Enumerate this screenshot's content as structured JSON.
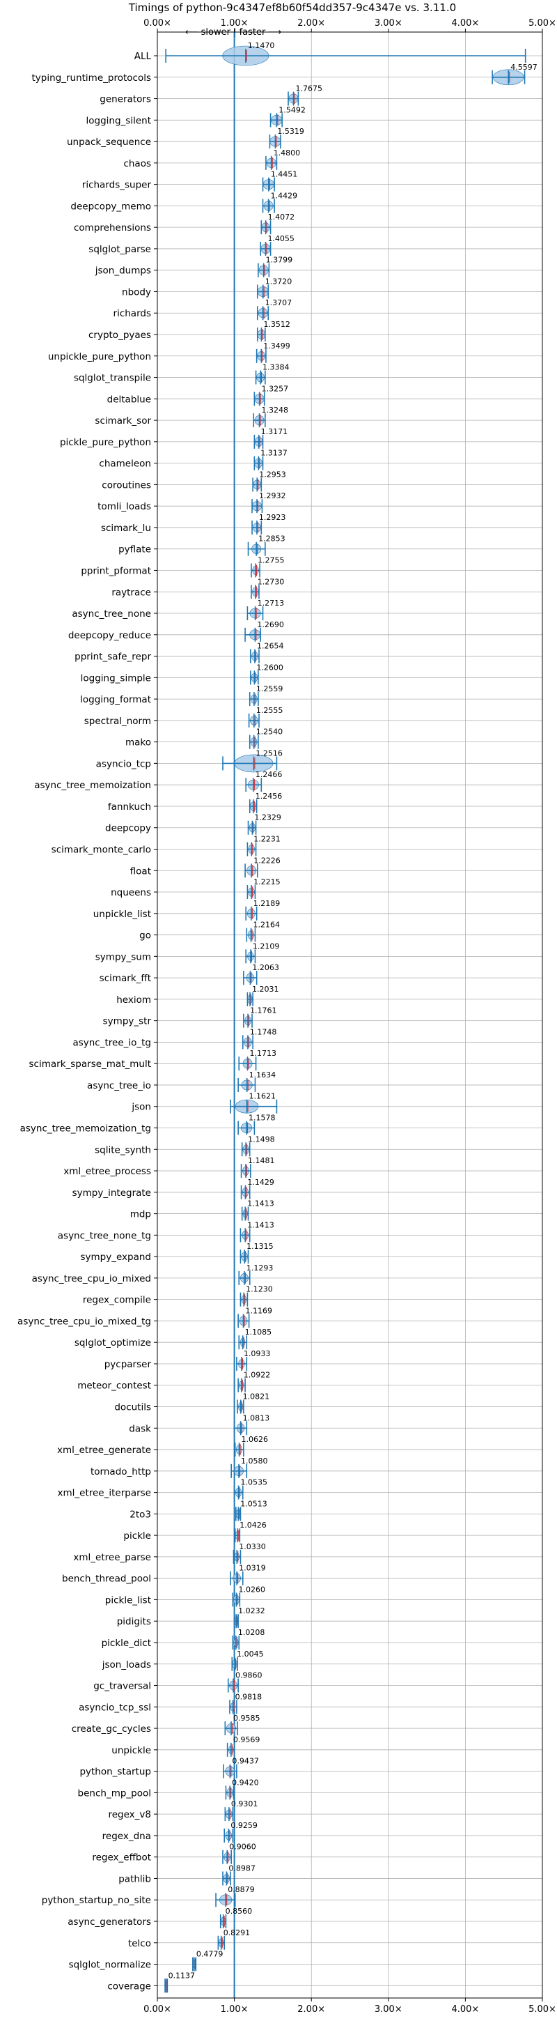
{
  "chart_data": {
    "type": "violin",
    "title": "Timings of python-9c4347ef8b60f54dd357-9c4347e vs. 3.11.0",
    "direction_annotation": "⟵ slower | faster ⟶",
    "xlim": [
      0,
      5
    ],
    "x_ticks": [
      0,
      1,
      2,
      3,
      4,
      5
    ],
    "x_tick_labels": [
      "0.00×",
      "1.00×",
      "2.00×",
      "3.00×",
      "4.00×",
      "5.00×"
    ],
    "reference_line": 1.0,
    "grid": true,
    "benchmarks": [
      {
        "name": "ALL",
        "value": 1.147,
        "label": "1.1470",
        "lo": 0.11,
        "hi": 4.78,
        "spread": 0.3
      },
      {
        "name": "typing_runtime_protocols",
        "value": 4.5597,
        "label": "4.5597",
        "lo": 4.35,
        "hi": 4.77,
        "spread": 0.2
      },
      {
        "name": "generators",
        "value": 1.7675,
        "label": "1.7675",
        "lo": 1.7,
        "hi": 1.83,
        "spread": 0.06
      },
      {
        "name": "logging_silent",
        "value": 1.5492,
        "label": "1.5492",
        "lo": 1.47,
        "hi": 1.62,
        "spread": 0.07
      },
      {
        "name": "unpack_sequence",
        "value": 1.5319,
        "label": "1.5319",
        "lo": 1.46,
        "hi": 1.6,
        "spread": 0.07
      },
      {
        "name": "chaos",
        "value": 1.48,
        "label": "1.4800",
        "lo": 1.41,
        "hi": 1.55,
        "spread": 0.06
      },
      {
        "name": "richards_super",
        "value": 1.4451,
        "label": "1.4451",
        "lo": 1.37,
        "hi": 1.52,
        "spread": 0.07
      },
      {
        "name": "deepcopy_memo",
        "value": 1.4429,
        "label": "1.4429",
        "lo": 1.37,
        "hi": 1.52,
        "spread": 0.06
      },
      {
        "name": "comprehensions",
        "value": 1.4072,
        "label": "1.4072",
        "lo": 1.35,
        "hi": 1.47,
        "spread": 0.05
      },
      {
        "name": "sqlglot_parse",
        "value": 1.4055,
        "label": "1.4055",
        "lo": 1.34,
        "hi": 1.47,
        "spread": 0.06
      },
      {
        "name": "json_dumps",
        "value": 1.3799,
        "label": "1.3799",
        "lo": 1.31,
        "hi": 1.45,
        "spread": 0.06
      },
      {
        "name": "nbody",
        "value": 1.372,
        "label": "1.3720",
        "lo": 1.3,
        "hi": 1.44,
        "spread": 0.07
      },
      {
        "name": "richards",
        "value": 1.3707,
        "label": "1.3707",
        "lo": 1.3,
        "hi": 1.44,
        "spread": 0.06
      },
      {
        "name": "crypto_pyaes",
        "value": 1.3512,
        "label": "1.3512",
        "lo": 1.3,
        "hi": 1.4,
        "spread": 0.05
      },
      {
        "name": "unpickle_pure_python",
        "value": 1.3499,
        "label": "1.3499",
        "lo": 1.29,
        "hi": 1.41,
        "spread": 0.05
      },
      {
        "name": "sqlglot_transpile",
        "value": 1.3384,
        "label": "1.3384",
        "lo": 1.28,
        "hi": 1.4,
        "spread": 0.05
      },
      {
        "name": "deltablue",
        "value": 1.3257,
        "label": "1.3257",
        "lo": 1.26,
        "hi": 1.39,
        "spread": 0.06
      },
      {
        "name": "scimark_sor",
        "value": 1.3248,
        "label": "1.3248",
        "lo": 1.25,
        "hi": 1.4,
        "spread": 0.06
      },
      {
        "name": "pickle_pure_python",
        "value": 1.3171,
        "label": "1.3171",
        "lo": 1.26,
        "hi": 1.37,
        "spread": 0.05
      },
      {
        "name": "chameleon",
        "value": 1.3137,
        "label": "1.3137",
        "lo": 1.26,
        "hi": 1.37,
        "spread": 0.05
      },
      {
        "name": "coroutines",
        "value": 1.2953,
        "label": "1.2953",
        "lo": 1.24,
        "hi": 1.35,
        "spread": 0.05
      },
      {
        "name": "tomli_loads",
        "value": 1.2932,
        "label": "1.2932",
        "lo": 1.23,
        "hi": 1.36,
        "spread": 0.06
      },
      {
        "name": "scimark_lu",
        "value": 1.2923,
        "label": "1.2923",
        "lo": 1.23,
        "hi": 1.35,
        "spread": 0.05
      },
      {
        "name": "pyflate",
        "value": 1.2853,
        "label": "1.2853",
        "lo": 1.18,
        "hi": 1.4,
        "spread": 0.06
      },
      {
        "name": "pprint_pformat",
        "value": 1.2755,
        "label": "1.2755",
        "lo": 1.22,
        "hi": 1.33,
        "spread": 0.04
      },
      {
        "name": "raytrace",
        "value": 1.273,
        "label": "1.2730",
        "lo": 1.22,
        "hi": 1.32,
        "spread": 0.04
      },
      {
        "name": "async_tree_none",
        "value": 1.2713,
        "label": "1.2713",
        "lo": 1.17,
        "hi": 1.37,
        "spread": 0.07
      },
      {
        "name": "deepcopy_reduce",
        "value": 1.269,
        "label": "1.2690",
        "lo": 1.14,
        "hi": 1.34,
        "spread": 0.07
      },
      {
        "name": "pprint_safe_repr",
        "value": 1.2654,
        "label": "1.2654",
        "lo": 1.21,
        "hi": 1.32,
        "spread": 0.04
      },
      {
        "name": "logging_simple",
        "value": 1.26,
        "label": "1.2600",
        "lo": 1.21,
        "hi": 1.31,
        "spread": 0.04
      },
      {
        "name": "logging_format",
        "value": 1.2559,
        "label": "1.2559",
        "lo": 1.2,
        "hi": 1.31,
        "spread": 0.04
      },
      {
        "name": "spectral_norm",
        "value": 1.2555,
        "label": "1.2555",
        "lo": 1.19,
        "hi": 1.32,
        "spread": 0.05
      },
      {
        "name": "mako",
        "value": 1.254,
        "label": "1.2540",
        "lo": 1.2,
        "hi": 1.31,
        "spread": 0.04
      },
      {
        "name": "asyncio_tcp",
        "value": 1.2516,
        "label": "1.2516",
        "lo": 0.85,
        "hi": 1.55,
        "spread": 0.25
      },
      {
        "name": "async_tree_memoization",
        "value": 1.2466,
        "label": "1.2466",
        "lo": 1.15,
        "hi": 1.35,
        "spread": 0.07
      },
      {
        "name": "fannkuch",
        "value": 1.2456,
        "label": "1.2456",
        "lo": 1.2,
        "hi": 1.29,
        "spread": 0.04
      },
      {
        "name": "deepcopy",
        "value": 1.2329,
        "label": "1.2329",
        "lo": 1.18,
        "hi": 1.28,
        "spread": 0.04
      },
      {
        "name": "scimark_monte_carlo",
        "value": 1.2231,
        "label": "1.2231",
        "lo": 1.17,
        "hi": 1.28,
        "spread": 0.04
      },
      {
        "name": "float",
        "value": 1.2226,
        "label": "1.2226",
        "lo": 1.14,
        "hi": 1.3,
        "spread": 0.06
      },
      {
        "name": "nqueens",
        "value": 1.2215,
        "label": "1.2215",
        "lo": 1.17,
        "hi": 1.27,
        "spread": 0.04
      },
      {
        "name": "unpickle_list",
        "value": 1.2189,
        "label": "1.2189",
        "lo": 1.15,
        "hi": 1.29,
        "spread": 0.05
      },
      {
        "name": "go",
        "value": 1.2164,
        "label": "1.2164",
        "lo": 1.16,
        "hi": 1.27,
        "spread": 0.04
      },
      {
        "name": "sympy_sum",
        "value": 1.2109,
        "label": "1.2109",
        "lo": 1.15,
        "hi": 1.27,
        "spread": 0.04
      },
      {
        "name": "scimark_fft",
        "value": 1.2063,
        "label": "1.2063",
        "lo": 1.12,
        "hi": 1.29,
        "spread": 0.05
      },
      {
        "name": "hexiom",
        "value": 1.2031,
        "label": "1.2031",
        "lo": 1.17,
        "hi": 1.24,
        "spread": 0.03
      },
      {
        "name": "sympy_str",
        "value": 1.1761,
        "label": "1.1761",
        "lo": 1.12,
        "hi": 1.23,
        "spread": 0.04
      },
      {
        "name": "async_tree_io_tg",
        "value": 1.1748,
        "label": "1.1748",
        "lo": 1.11,
        "hi": 1.24,
        "spread": 0.05
      },
      {
        "name": "scimark_sparse_mat_mult",
        "value": 1.1713,
        "label": "1.1713",
        "lo": 1.06,
        "hi": 1.28,
        "spread": 0.06
      },
      {
        "name": "async_tree_io",
        "value": 1.1634,
        "label": "1.1634",
        "lo": 1.05,
        "hi": 1.27,
        "spread": 0.07
      },
      {
        "name": "json",
        "value": 1.1621,
        "label": "1.1621",
        "lo": 0.95,
        "hi": 1.55,
        "spread": 0.15
      },
      {
        "name": "async_tree_memoization_tg",
        "value": 1.1578,
        "label": "1.1578",
        "lo": 1.05,
        "hi": 1.26,
        "spread": 0.07
      },
      {
        "name": "sqlite_synth",
        "value": 1.1498,
        "label": "1.1498",
        "lo": 1.1,
        "hi": 1.2,
        "spread": 0.04
      },
      {
        "name": "xml_etree_process",
        "value": 1.1481,
        "label": "1.1481",
        "lo": 1.09,
        "hi": 1.21,
        "spread": 0.04
      },
      {
        "name": "sympy_integrate",
        "value": 1.1429,
        "label": "1.1429",
        "lo": 1.09,
        "hi": 1.2,
        "spread": 0.04
      },
      {
        "name": "mdp",
        "value": 1.1413,
        "label": "1.1413",
        "lo": 1.1,
        "hi": 1.18,
        "spread": 0.03
      },
      {
        "name": "async_tree_none_tg",
        "value": 1.1413,
        "label": "1.1413",
        "lo": 1.08,
        "hi": 1.2,
        "spread": 0.04
      },
      {
        "name": "sympy_expand",
        "value": 1.1315,
        "label": "1.1315",
        "lo": 1.08,
        "hi": 1.18,
        "spread": 0.04
      },
      {
        "name": "async_tree_cpu_io_mixed",
        "value": 1.1293,
        "label": "1.1293",
        "lo": 1.06,
        "hi": 1.2,
        "spread": 0.05
      },
      {
        "name": "regex_compile",
        "value": 1.123,
        "label": "1.1230",
        "lo": 1.08,
        "hi": 1.17,
        "spread": 0.03
      },
      {
        "name": "async_tree_cpu_io_mixed_tg",
        "value": 1.1169,
        "label": "1.1169",
        "lo": 1.05,
        "hi": 1.19,
        "spread": 0.05
      },
      {
        "name": "sqlglot_optimize",
        "value": 1.1085,
        "label": "1.1085",
        "lo": 1.06,
        "hi": 1.16,
        "spread": 0.03
      },
      {
        "name": "pycparser",
        "value": 1.0933,
        "label": "1.0933",
        "lo": 1.03,
        "hi": 1.16,
        "spread": 0.04
      },
      {
        "name": "meteor_contest",
        "value": 1.0922,
        "label": "1.0922",
        "lo": 1.05,
        "hi": 1.14,
        "spread": 0.03
      },
      {
        "name": "docutils",
        "value": 1.0821,
        "label": "1.0821",
        "lo": 1.04,
        "hi": 1.12,
        "spread": 0.03
      },
      {
        "name": "dask",
        "value": 1.0813,
        "label": "1.0813",
        "lo": 1.0,
        "hi": 1.16,
        "spread": 0.05
      },
      {
        "name": "xml_etree_generate",
        "value": 1.0626,
        "label": "1.0626",
        "lo": 1.01,
        "hi": 1.12,
        "spread": 0.04
      },
      {
        "name": "tornado_http",
        "value": 1.058,
        "label": "1.0580",
        "lo": 0.96,
        "hi": 1.16,
        "spread": 0.06
      },
      {
        "name": "xml_etree_iterparse",
        "value": 1.0535,
        "label": "1.0535",
        "lo": 1.0,
        "hi": 1.11,
        "spread": 0.04
      },
      {
        "name": "2to3",
        "value": 1.0513,
        "label": "1.0513",
        "lo": 1.02,
        "hi": 1.08,
        "spread": 0.03
      },
      {
        "name": "pickle",
        "value": 1.0426,
        "label": "1.0426",
        "lo": 1.01,
        "hi": 1.07,
        "spread": 0.03
      },
      {
        "name": "xml_etree_parse",
        "value": 1.033,
        "label": "1.0330",
        "lo": 0.99,
        "hi": 1.08,
        "spread": 0.03
      },
      {
        "name": "bench_thread_pool",
        "value": 1.0319,
        "label": "1.0319",
        "lo": 0.95,
        "hi": 1.11,
        "spread": 0.05
      },
      {
        "name": "pickle_list",
        "value": 1.026,
        "label": "1.0260",
        "lo": 0.98,
        "hi": 1.07,
        "spread": 0.04
      },
      {
        "name": "pidigits",
        "value": 1.0232,
        "label": "1.0232",
        "lo": 1.0,
        "hi": 1.05,
        "spread": 0.02
      },
      {
        "name": "pickle_dict",
        "value": 1.0208,
        "label": "1.0208",
        "lo": 0.98,
        "hi": 1.06,
        "spread": 0.03
      },
      {
        "name": "json_loads",
        "value": 1.0045,
        "label": "1.0045",
        "lo": 0.97,
        "hi": 1.04,
        "spread": 0.03
      },
      {
        "name": "gc_traversal",
        "value": 0.986,
        "label": "0.9860",
        "lo": 0.92,
        "hi": 1.05,
        "spread": 0.05
      },
      {
        "name": "asyncio_tcp_ssl",
        "value": 0.9818,
        "label": "0.9818",
        "lo": 0.94,
        "hi": 1.03,
        "spread": 0.03
      },
      {
        "name": "create_gc_cycles",
        "value": 0.9585,
        "label": "0.9585",
        "lo": 0.88,
        "hi": 1.04,
        "spread": 0.06
      },
      {
        "name": "unpickle",
        "value": 0.9569,
        "label": "0.9569",
        "lo": 0.91,
        "hi": 1.0,
        "spread": 0.03
      },
      {
        "name": "python_startup",
        "value": 0.9437,
        "label": "0.9437",
        "lo": 0.86,
        "hi": 1.03,
        "spread": 0.06
      },
      {
        "name": "bench_mp_pool",
        "value": 0.942,
        "label": "0.9420",
        "lo": 0.89,
        "hi": 0.99,
        "spread": 0.04
      },
      {
        "name": "regex_v8",
        "value": 0.9301,
        "label": "0.9301",
        "lo": 0.88,
        "hi": 0.98,
        "spread": 0.04
      },
      {
        "name": "regex_dna",
        "value": 0.9259,
        "label": "0.9259",
        "lo": 0.87,
        "hi": 0.98,
        "spread": 0.04
      },
      {
        "name": "regex_effbot",
        "value": 0.906,
        "label": "0.9060",
        "lo": 0.85,
        "hi": 0.96,
        "spread": 0.04
      },
      {
        "name": "pathlib",
        "value": 0.8987,
        "label": "0.8987",
        "lo": 0.85,
        "hi": 0.95,
        "spread": 0.04
      },
      {
        "name": "python_startup_no_site",
        "value": 0.8879,
        "label": "0.8879",
        "lo": 0.76,
        "hi": 1.01,
        "spread": 0.08
      },
      {
        "name": "async_generators",
        "value": 0.856,
        "label": "0.8560",
        "lo": 0.82,
        "hi": 0.89,
        "spread": 0.03
      },
      {
        "name": "telco",
        "value": 0.8291,
        "label": "0.8291",
        "lo": 0.79,
        "hi": 0.87,
        "spread": 0.03
      },
      {
        "name": "sqlglot_normalize",
        "value": 0.4779,
        "label": "0.4779",
        "lo": 0.46,
        "hi": 0.5,
        "spread": 0.02
      },
      {
        "name": "coverage",
        "value": 0.1137,
        "label": "0.1137",
        "lo": 0.1,
        "hi": 0.13,
        "spread": 0.01
      }
    ],
    "colors": {
      "violin_fill": "#a9cbe8",
      "violin_edge": "#1f77b4",
      "whisker": "#1f77b4",
      "median_marker": "#d62728",
      "reference_line": "#1f77b4",
      "grid": "#b0b0b0",
      "axis": "#000000"
    }
  }
}
